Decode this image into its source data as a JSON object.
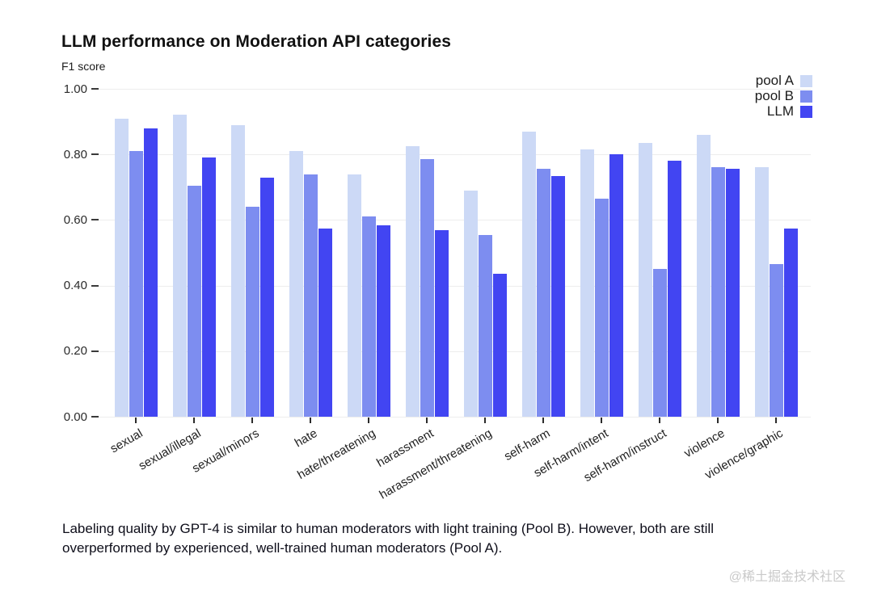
{
  "page": {
    "title": "LLM performance on Moderation API categories",
    "subtitle": "F1 score",
    "caption_line1": "Labeling quality by GPT-4 is similar to human moderators with light training (Pool B). However, both are still",
    "caption_line2": "overperformed by experienced, well-trained human moderators (Pool A).",
    "watermark": "@稀土掘金技术社区"
  },
  "chart_data": {
    "type": "bar",
    "title": "LLM performance on Moderation API categories",
    "ylabel": "F1 score",
    "ylim": [
      0,
      1.0
    ],
    "grid": true,
    "legend_position": "top-right",
    "yticks": [
      {
        "value": 1.0,
        "label": "1.00"
      },
      {
        "value": 0.8,
        "label": "0.80"
      },
      {
        "value": 0.6,
        "label": "0.60"
      },
      {
        "value": 0.4,
        "label": "0.40"
      },
      {
        "value": 0.2,
        "label": "0.20"
      },
      {
        "value": 0.0,
        "label": "0.00"
      }
    ],
    "categories": [
      "sexual",
      "sexual/illegal",
      "sexual/minors",
      "hate",
      "hate/threatening",
      "harassment",
      "harassment/threatening",
      "self-harm",
      "self-harm/intent",
      "self-harm/instruct",
      "violence",
      "violence/graphic"
    ],
    "series": [
      {
        "name": "pool A",
        "color": "#ccd9f6",
        "values": [
          0.91,
          0.92,
          0.89,
          0.81,
          0.74,
          0.825,
          0.69,
          0.87,
          0.815,
          0.835,
          0.86,
          0.76
        ]
      },
      {
        "name": "pool B",
        "color": "#7d8df0",
        "values": [
          0.81,
          0.705,
          0.64,
          0.74,
          0.61,
          0.785,
          0.555,
          0.755,
          0.665,
          0.45,
          0.76,
          0.465
        ]
      },
      {
        "name": "LLM",
        "color": "#4245f2",
        "values": [
          0.88,
          0.79,
          0.73,
          0.575,
          0.585,
          0.57,
          0.435,
          0.735,
          0.8,
          0.78,
          0.755,
          0.575
        ]
      }
    ]
  }
}
